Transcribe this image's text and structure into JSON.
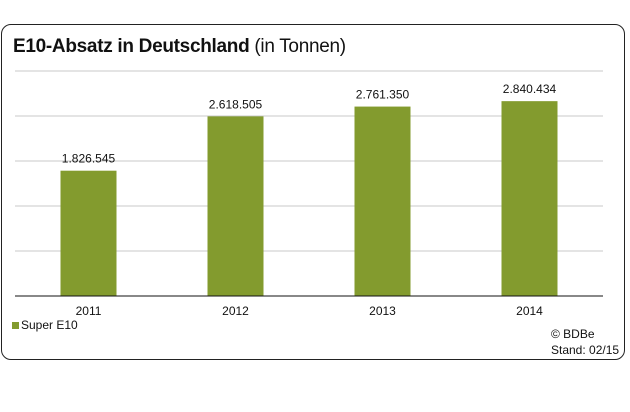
{
  "title": {
    "bold": "E10-Absatz in Deutschland",
    "normal": "(in Tonnen)"
  },
  "chart_data": {
    "type": "bar",
    "title": "E10-Absatz in Deutschland (in Tonnen)",
    "categories": [
      "2011",
      "2012",
      "2013",
      "2014"
    ],
    "series": [
      {
        "name": "Super E10",
        "values": [
          1826545,
          2618505,
          2761350,
          2840434
        ],
        "labels": [
          "1.826.545",
          "2.618.505",
          "2.761.350",
          "2.840.434"
        ],
        "color": "#839b2e"
      }
    ],
    "ylim": [
      0,
      3280000
    ],
    "grid": true,
    "grid_divisions": 5,
    "legend": "bottom-left"
  },
  "credit": {
    "line1": "© BDBe",
    "line2": "Stand: 02/15"
  }
}
